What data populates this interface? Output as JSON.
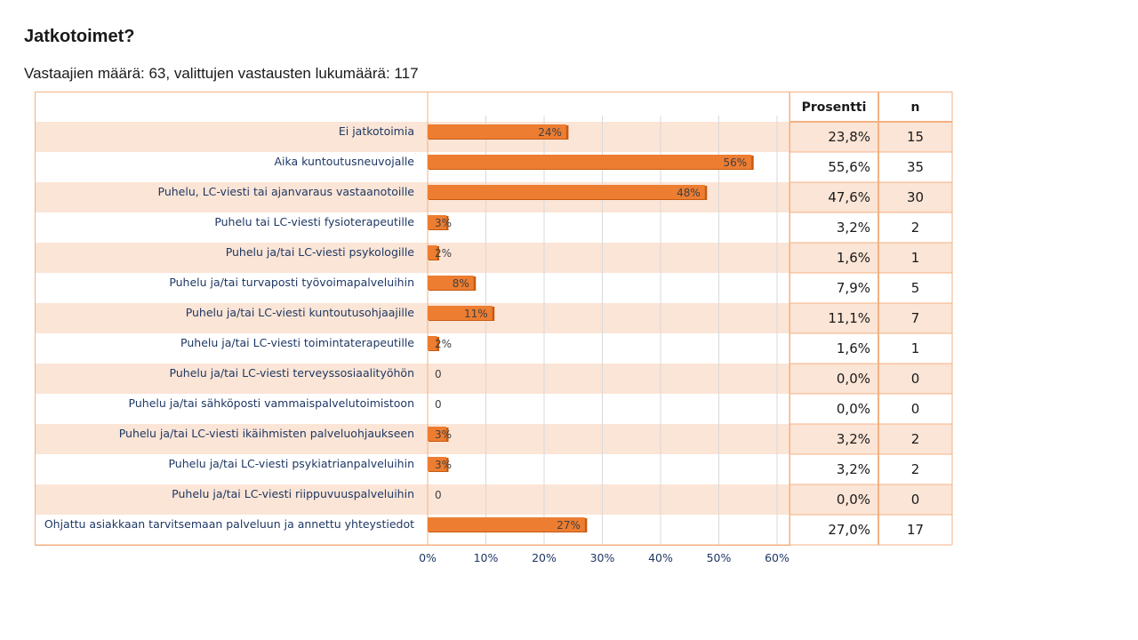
{
  "title": "Jatkotoimet?",
  "subtitle": "Vastaajien määrä: 63, valittujen vastausten lukumäärä: 117",
  "colors": {
    "bar": "#ed7d31",
    "bar_dark": "#c55a11",
    "stripe": "#fbe5d6",
    "frame": "#f4b183",
    "grid": "#d9d9d9"
  },
  "chart_data": {
    "type": "bar",
    "orientation": "horizontal",
    "categories": [
      "Ei jatkotoimia",
      "Aika kuntoutusneuvojalle",
      "Puhelu, LC-viesti tai ajanvaraus vastaanotoille",
      "Puhelu tai LC-viesti fysioterapeutille",
      "Puhelu ja/tai LC-viesti psykologille",
      "Puhelu ja/tai turvaposti työvoimapalveluihin",
      "Puhelu ja/tai LC-viesti kuntoutusohjaajille",
      "Puhelu ja/tai LC-viesti toimintaterapeutille",
      "Puhelu ja/tai LC-viesti terveyssosiaalityöhön",
      "Puhelu ja/tai sähköposti vammaispalvelutoimistoon",
      "Puhelu ja/tai LC-viesti ikäihmisten palveluohjaukseen",
      "Puhelu ja/tai LC-viesti psykiatrianpalveluihin",
      "Puhelu ja/tai LC-viesti riippuvuuspalveluihin",
      "Ohjattu asiakkaan tarvitsemaan palveluun ja annettu yhteystiedot"
    ],
    "values": [
      23.8,
      55.6,
      47.6,
      3.2,
      1.6,
      7.9,
      11.1,
      1.6,
      0.0,
      0.0,
      3.2,
      3.2,
      0.0,
      27.0
    ],
    "data_labels": [
      "24%",
      "56%",
      "48%",
      "3%",
      "2%",
      "8%",
      "11%",
      "2%",
      "0",
      "0",
      "3%",
      "3%",
      "0",
      "27%"
    ],
    "xlim": [
      0,
      60
    ],
    "x_ticks": [
      "0%",
      "10%",
      "20%",
      "30%",
      "40%",
      "50%",
      "60%"
    ],
    "grid": true,
    "xlabel": "",
    "ylabel": ""
  },
  "table": {
    "headers": [
      "Prosentti",
      "n"
    ],
    "rows": [
      [
        "23,8%",
        "15"
      ],
      [
        "55,6%",
        "35"
      ],
      [
        "47,6%",
        "30"
      ],
      [
        "3,2%",
        "2"
      ],
      [
        "1,6%",
        "1"
      ],
      [
        "7,9%",
        "5"
      ],
      [
        "11,1%",
        "7"
      ],
      [
        "1,6%",
        "1"
      ],
      [
        "0,0%",
        "0"
      ],
      [
        "0,0%",
        "0"
      ],
      [
        "3,2%",
        "2"
      ],
      [
        "3,2%",
        "2"
      ],
      [
        "0,0%",
        "0"
      ],
      [
        "27,0%",
        "17"
      ]
    ]
  }
}
